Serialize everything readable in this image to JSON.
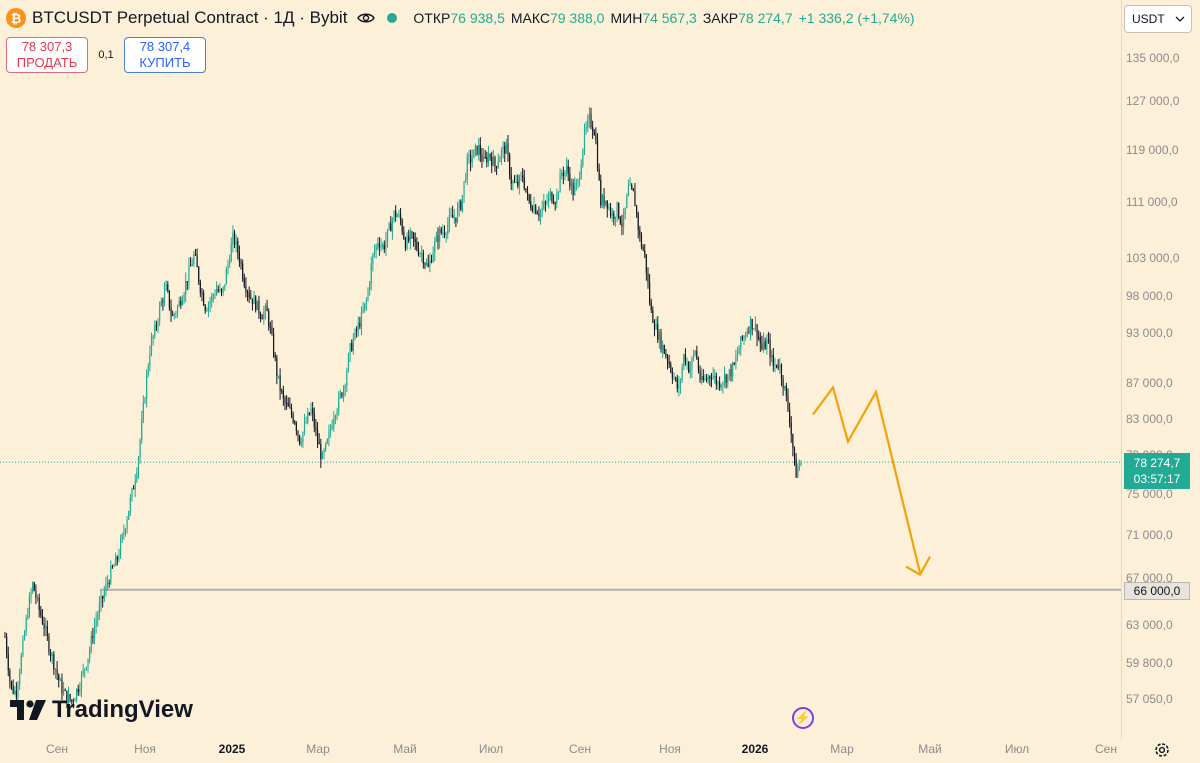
{
  "header": {
    "coin_icon_label": "₿",
    "title": "BTCUSDT Perpetual Contract · 1Д · Bybit",
    "ohlc": [
      {
        "label": "ОТКР",
        "value": "76 938,5"
      },
      {
        "label": "МАКС",
        "value": "79 388,0"
      },
      {
        "label": "МИН",
        "value": "74 567,3"
      },
      {
        "label": "ЗАКР",
        "value": "78 274,7"
      }
    ],
    "change": "+1 336,2 (+1,74%)"
  },
  "trade": {
    "sell_price": "78 307,3",
    "sell_label": "ПРОДАТЬ",
    "spread": "0,1",
    "buy_price": "78 307,4",
    "buy_label": "КУПИТЬ"
  },
  "currency_selector": "USDT",
  "price_axis": [
    "135 000,0",
    "127 000,0",
    "119 000,0",
    "111 000,0",
    "103 000,0",
    "98 000,0",
    "93 000,0",
    "87 000,0",
    "83 000,0",
    "79 000,0",
    "75 000,0",
    "71 000,0",
    "67 000,0",
    "63 000,0",
    "59 800,0",
    "57 050,0"
  ],
  "last_price": {
    "price": "78 274,7",
    "countdown": "03:57:17"
  },
  "level_line": {
    "price": "66 000,0"
  },
  "time_axis": [
    {
      "label": "Сен"
    },
    {
      "label": "Ноя"
    },
    {
      "label": "2025",
      "bold": true
    },
    {
      "label": "Мар"
    },
    {
      "label": "Май"
    },
    {
      "label": "Июл"
    },
    {
      "label": "Сен"
    },
    {
      "label": "Ноя"
    },
    {
      "label": "2026",
      "bold": true
    },
    {
      "label": "Мар"
    },
    {
      "label": "Май"
    },
    {
      "label": "Июл"
    },
    {
      "label": "Сен"
    }
  ],
  "logo": {
    "text": "TradingView"
  },
  "colors": {
    "up": "#22ab94",
    "down": "#131722",
    "projection": "#f0a30a",
    "background": "#fdf0d8",
    "level": "#b0b0b0"
  },
  "chart_data": {
    "type": "candlestick",
    "series": [
      {
        "name": "BTCUSDT",
        "close_path": [
          62000,
          58000,
          57500,
          60500,
          64000,
          66500,
          64500,
          63000,
          61000,
          59500,
          58000,
          57200,
          56900,
          57800,
          59000,
          60500,
          62800,
          64500,
          66000,
          67500,
          68500,
          70500,
          73000,
          75500,
          79000,
          85000,
          91000,
          93500,
          97000,
          99000,
          95000,
          96500,
          98500,
          101000,
          103500,
          99500,
          96500,
          97500,
          99000,
          98000,
          102000,
          106000,
          103500,
          100000,
          98000,
          97000,
          95500,
          96000,
          92000,
          87500,
          85000,
          84000,
          83000,
          80500,
          82500,
          84000,
          81000,
          78500,
          80500,
          83500,
          85000,
          87000,
          91000,
          93000,
          95000,
          97500,
          103000,
          105500,
          104500,
          107000,
          109500,
          108500,
          105000,
          106000,
          104500,
          103500,
          101500,
          104500,
          106500,
          107000,
          108500,
          109000,
          111000,
          117000,
          118000,
          119500,
          117000,
          118500,
          116500,
          118500,
          119500,
          114000,
          113500,
          115000,
          111000,
          110500,
          109500,
          110500,
          112000,
          111500,
          115500,
          116000,
          112500,
          114000,
          121000,
          124000,
          122000,
          111000,
          111500,
          109000,
          110000,
          107500,
          113000,
          112000,
          106000,
          103000,
          96000,
          93500,
          91500,
          90000,
          88000,
          86000,
          90500,
          88500,
          91000,
          87000,
          87500,
          88200,
          86900,
          87500,
          88000,
          89000,
          91500,
          93000,
          94500,
          93500,
          91000,
          92000,
          89000,
          89500,
          86500,
          83000,
          77000,
          78274
        ]
      }
    ],
    "x_ticks": [
      "Сен",
      "Ноя",
      "2025",
      "Мар",
      "Май",
      "Июл",
      "Сен",
      "Ноя",
      "2026",
      "Мар",
      "Май",
      "Июл",
      "Сен"
    ],
    "y_ticks": [
      135000,
      127000,
      119000,
      111000,
      103000,
      98000,
      93000,
      87000,
      83000,
      79000,
      75000,
      71000,
      67000,
      63000,
      59800,
      57050
    ],
    "horizontal_level": 66000,
    "last_close": 78274.7,
    "projection_path": [
      78274.7,
      83500,
      86500,
      80500,
      86000,
      67500
    ]
  }
}
